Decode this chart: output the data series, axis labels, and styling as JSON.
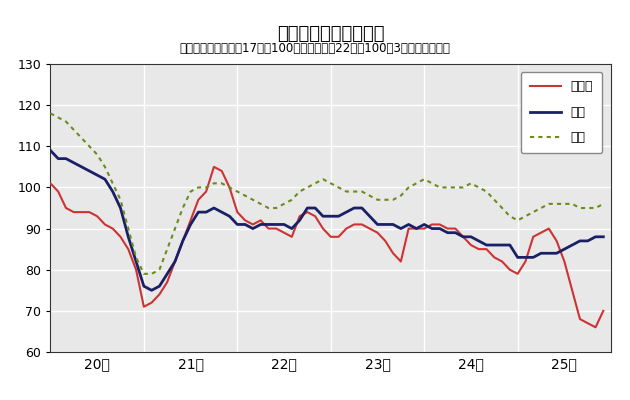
{
  "title": "鉱工業生産指数の推移",
  "subtitle": "（季節調整済、平成17年＝100、全国は平成22年＝100、3ヶ月移動平均）",
  "title_fontsize": 13,
  "subtitle_fontsize": 8.5,
  "ylim": [
    60,
    130
  ],
  "yticks": [
    60,
    70,
    80,
    90,
    100,
    110,
    120,
    130
  ],
  "fig_bg_color": "#ffffff",
  "plot_bg_color": "#e8e8e8",
  "grid_color": "#ffffff",
  "legend_labels": [
    "鳥取県",
    "中国",
    "全国"
  ],
  "line_colors": [
    "#cc3333",
    "#1a2066",
    "#6b8c1a"
  ],
  "x_tick_labels": [
    "20年",
    "21年",
    "22年",
    "23年",
    "24年",
    "25年"
  ],
  "x_tick_positions": [
    6,
    18,
    30,
    42,
    54,
    66
  ],
  "n_points": 72,
  "tottori": [
    101,
    99,
    95,
    94,
    94,
    94,
    93,
    91,
    90,
    88,
    85,
    80,
    71,
    72,
    74,
    77,
    82,
    87,
    92,
    97,
    99,
    105,
    104,
    100,
    94,
    92,
    91,
    92,
    90,
    90,
    89,
    88,
    93,
    94,
    93,
    90,
    88,
    88,
    90,
    91,
    91,
    90,
    89,
    87,
    84,
    82,
    90,
    90,
    90,
    91,
    91,
    90,
    90,
    88,
    86,
    85,
    85,
    83,
    82,
    80,
    79,
    82,
    88,
    89,
    90,
    87,
    82,
    75,
    68,
    67,
    66,
    70
  ],
  "chugoku": [
    109,
    107,
    107,
    106,
    105,
    104,
    103,
    102,
    99,
    95,
    88,
    82,
    76,
    75,
    76,
    79,
    82,
    87,
    91,
    94,
    94,
    95,
    94,
    93,
    91,
    91,
    90,
    91,
    91,
    91,
    91,
    90,
    92,
    95,
    95,
    93,
    93,
    93,
    94,
    95,
    95,
    93,
    91,
    91,
    91,
    90,
    91,
    90,
    91,
    90,
    90,
    89,
    89,
    88,
    88,
    87,
    86,
    86,
    86,
    86,
    83,
    83,
    83,
    84,
    84,
    84,
    85,
    86,
    87,
    87,
    88,
    88
  ],
  "zenkoku": [
    118,
    117,
    116,
    114,
    112,
    110,
    108,
    105,
    101,
    97,
    90,
    83,
    79,
    79,
    80,
    85,
    90,
    95,
    99,
    100,
    100,
    101,
    101,
    100,
    99,
    98,
    97,
    96,
    95,
    95,
    96,
    97,
    99,
    100,
    101,
    102,
    101,
    100,
    99,
    99,
    99,
    98,
    97,
    97,
    97,
    98,
    100,
    101,
    102,
    101,
    100,
    100,
    100,
    100,
    101,
    100,
    99,
    97,
    95,
    93,
    92,
    93,
    94,
    95,
    96,
    96,
    96,
    96,
    95,
    95,
    95,
    96
  ]
}
